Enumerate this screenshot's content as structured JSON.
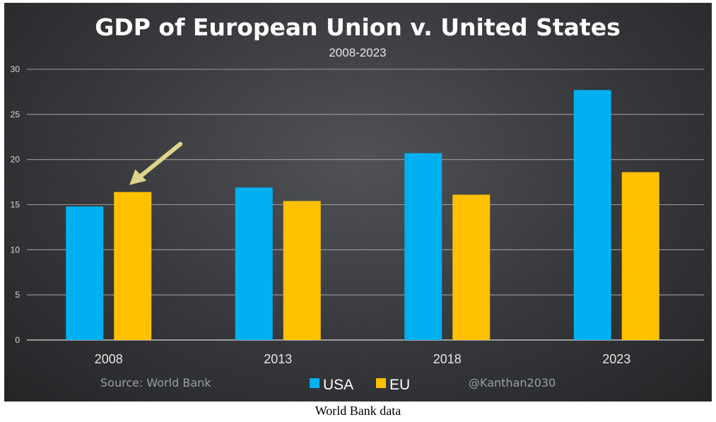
{
  "chart_data": {
    "type": "bar",
    "title": "GDP of European Union v. United States",
    "subtitle": "2008-2023",
    "categories": [
      "2008",
      "2013",
      "2018",
      "2023"
    ],
    "series": [
      {
        "name": "USA",
        "values": [
          14.8,
          16.9,
          20.7,
          27.7
        ],
        "color": "#00b0f0"
      },
      {
        "name": "EU",
        "values": [
          16.4,
          15.4,
          16.1,
          18.6
        ],
        "color": "#ffc000"
      }
    ],
    "yticks": [
      0,
      5,
      10,
      15,
      20,
      25,
      30
    ],
    "ylim": [
      0,
      30
    ],
    "grid": true,
    "legend_position": "bottom-center",
    "source": "Source: World Bank",
    "credit": "@Kanthan2030",
    "annotation": {
      "type": "arrow",
      "target_series": "EU",
      "target_category": "2008",
      "color": "#e0d38a"
    }
  },
  "caption": "World Bank data"
}
